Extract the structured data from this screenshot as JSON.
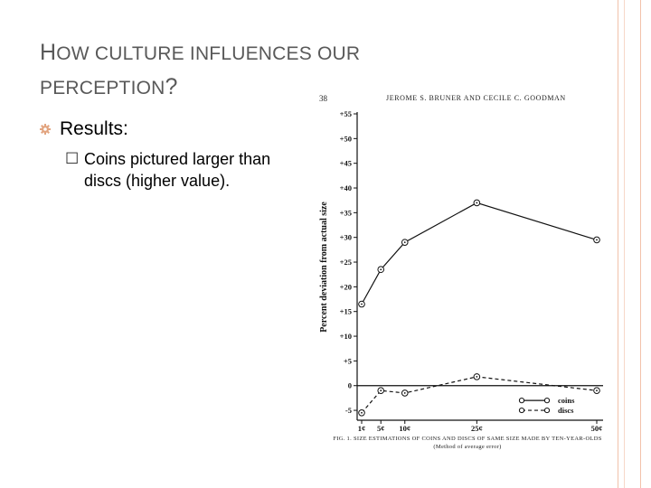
{
  "slide": {
    "title_cap_1": "H",
    "title_rest_1": "OW CULTURE INFLUENCES OUR",
    "title_line_2": "PERCEPTION",
    "title_qmark": "?",
    "bullet_1": "Results:",
    "bullet_2": "Coins pictured larger than discs (higher value).",
    "accent": "#f2c2aa",
    "bullet_icon": "gear-icon",
    "sub_bullet_icon": "square-box-icon"
  },
  "figure": {
    "page_number": "38",
    "running_head": "JEROME S. BRUNER AND CECILE C. GOODMAN",
    "caption": "FIG. 1. SIZE ESTIMATIONS OF COINS AND DISCS OF SAME SIZE MADE BY TEN-YEAR-OLDS",
    "caption_sub": "(Method of average error)"
  },
  "chart_data": {
    "type": "line",
    "title": "",
    "xlabel": "",
    "ylabel": "Percent deviation from actual size",
    "ylim": [
      -7,
      55
    ],
    "y_ticks": [
      55,
      50,
      45,
      40,
      35,
      30,
      25,
      20,
      15,
      10,
      5,
      0,
      -5
    ],
    "y_tick_labels": [
      "+55",
      "+50",
      "+45",
      "+40",
      "+35",
      "+30",
      "+25",
      "+20",
      "+15",
      "+10",
      "+5",
      "0",
      "-5"
    ],
    "x_ticks": [
      1,
      5,
      10,
      25,
      50
    ],
    "x_tick_labels": [
      "1¢",
      "5¢",
      "10¢",
      "25¢",
      "50¢"
    ],
    "legend_position": "bottom-right",
    "series": [
      {
        "name": "coins",
        "style": "solid",
        "x": [
          1,
          5,
          10,
          25,
          50
        ],
        "y": [
          16.5,
          23.5,
          29,
          37,
          29.5
        ]
      },
      {
        "name": "discs",
        "style": "dashed",
        "x": [
          1,
          5,
          10,
          25,
          50
        ],
        "y": [
          -5.5,
          -1,
          -1.5,
          1.8,
          -1
        ]
      }
    ]
  }
}
